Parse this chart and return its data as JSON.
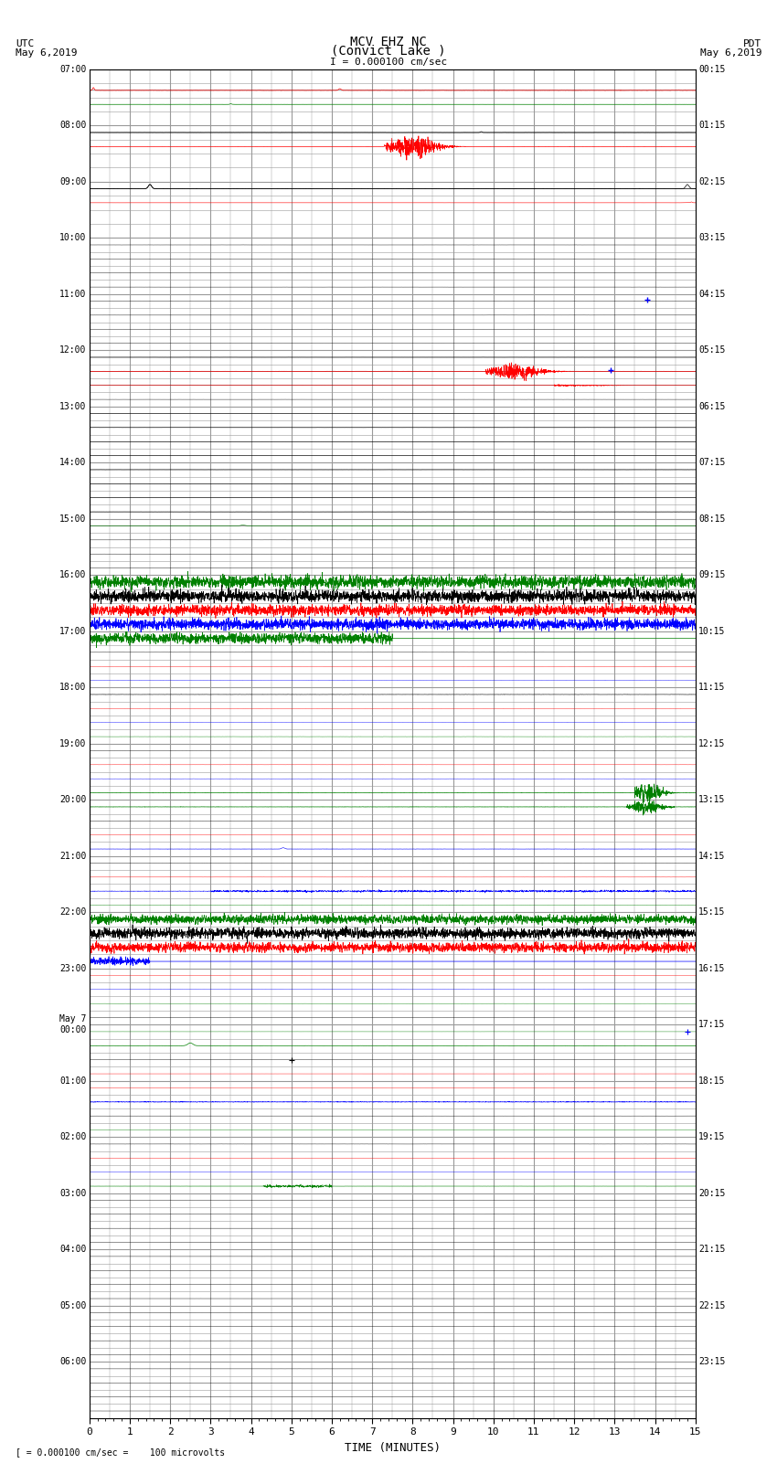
{
  "title_line1": "MCV EHZ NC",
  "title_line2": "(Convict Lake )",
  "scale_label": "I = 0.000100 cm/sec",
  "utc_label": "UTC",
  "utc_date": "May 6,2019",
  "pdt_label": "PDT",
  "pdt_date": "May 6,2019",
  "bottom_label": "[ = 0.000100 cm/sec =    100 microvolts",
  "xlabel": "TIME (MINUTES)",
  "time_minutes": 15,
  "bg_color": "#ffffff",
  "grid_color": "#999999",
  "figsize": [
    8.5,
    16.13
  ],
  "dpi": 100,
  "row_labels_left": [
    "07:00",
    "",
    "",
    "",
    "08:00",
    "",
    "",
    "",
    "09:00",
    "",
    "",
    "",
    "10:00",
    "",
    "",
    "",
    "11:00",
    "",
    "",
    "",
    "12:00",
    "",
    "",
    "",
    "13:00",
    "",
    "",
    "",
    "14:00",
    "",
    "",
    "",
    "15:00",
    "",
    "",
    "",
    "16:00",
    "",
    "",
    "",
    "17:00",
    "",
    "",
    "",
    "18:00",
    "",
    "",
    "",
    "19:00",
    "",
    "",
    "",
    "20:00",
    "",
    "",
    "",
    "21:00",
    "",
    "",
    "",
    "22:00",
    "",
    "",
    "",
    "23:00",
    "",
    "",
    "",
    "May 7\n00:00",
    "",
    "",
    "",
    "01:00",
    "",
    "",
    "",
    "02:00",
    "",
    "",
    "",
    "03:00",
    "",
    "",
    "",
    "04:00",
    "",
    "",
    "",
    "05:00",
    "",
    "",
    "",
    "06:00",
    "",
    "",
    ""
  ],
  "row_labels_right": [
    "00:15",
    "",
    "",
    "",
    "01:15",
    "",
    "",
    "",
    "02:15",
    "",
    "",
    "",
    "03:15",
    "",
    "",
    "",
    "04:15",
    "",
    "",
    "",
    "05:15",
    "",
    "",
    "",
    "06:15",
    "",
    "",
    "",
    "07:15",
    "",
    "",
    "",
    "08:15",
    "",
    "",
    "",
    "09:15",
    "",
    "",
    "",
    "10:15",
    "",
    "",
    "",
    "11:15",
    "",
    "",
    "",
    "12:15",
    "",
    "",
    "",
    "13:15",
    "",
    "",
    "",
    "14:15",
    "",
    "",
    "",
    "15:15",
    "",
    "",
    "",
    "16:15",
    "",
    "",
    "",
    "17:15",
    "",
    "",
    "",
    "18:15",
    "",
    "",
    "",
    "19:15",
    "",
    "",
    "",
    "20:15",
    "",
    "",
    "",
    "21:15",
    "",
    "",
    "",
    "22:15",
    "",
    "",
    "",
    "23:15",
    "",
    "",
    ""
  ]
}
